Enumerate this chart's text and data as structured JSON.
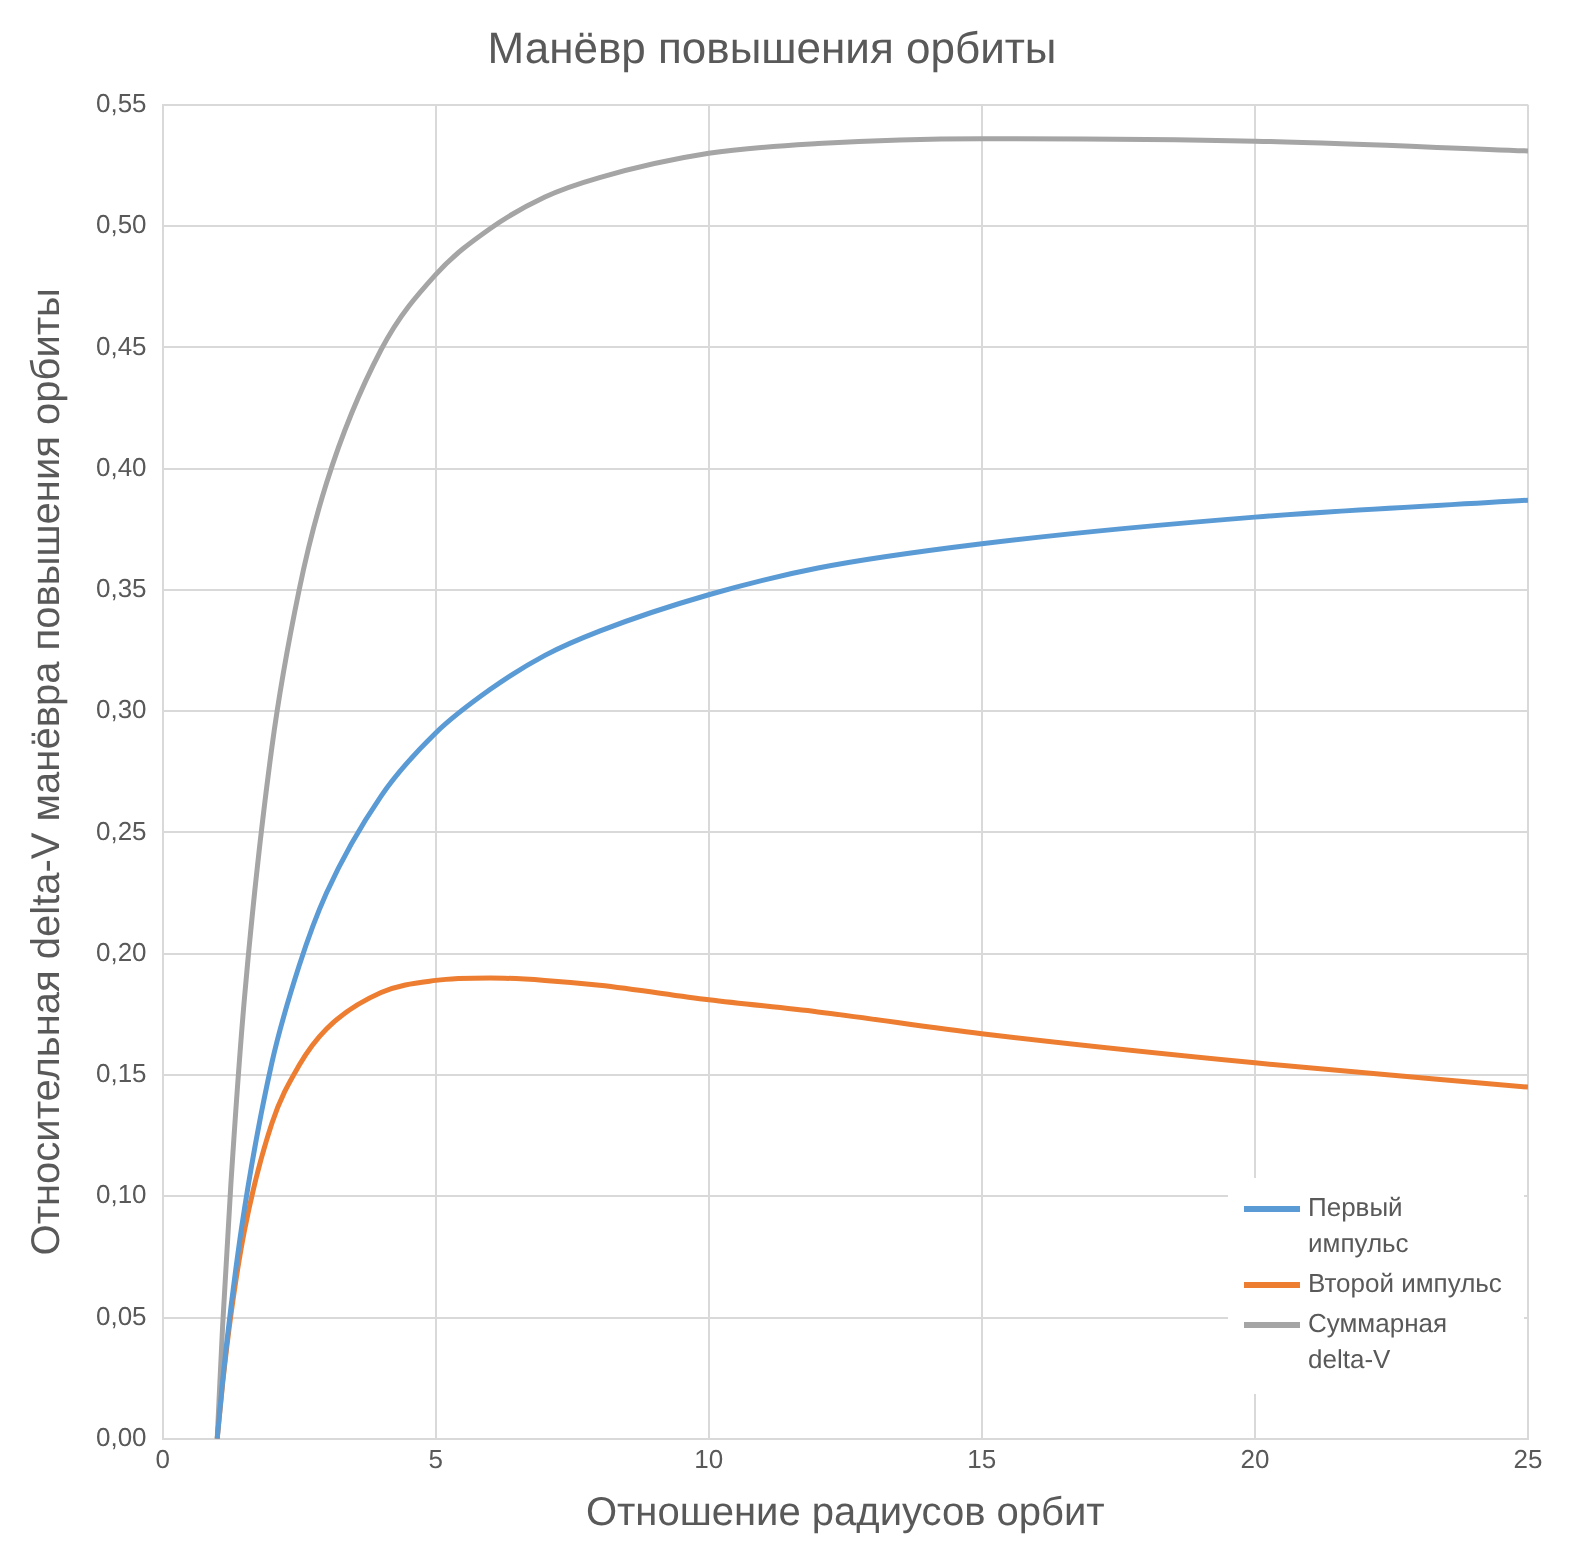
{
  "chart_data": {
    "type": "line",
    "title": "Манёвр повышения орбиты",
    "xlabel": "Отношение радиусов орбит",
    "ylabel": "Относительная delta-V манёвра повышения орбиты",
    "x": [
      1,
      1.1,
      1.25,
      1.5,
      2,
      2.5,
      3,
      4,
      5,
      6,
      7,
      8,
      10,
      12,
      15,
      20,
      25
    ],
    "series": [
      {
        "name": "Первый импульс",
        "color": "#5b9bd5",
        "values": [
          0,
          0.024,
          0.054,
          0.095,
          0.155,
          0.195,
          0.225,
          0.265,
          0.291,
          0.309,
          0.323,
          0.333,
          0.348,
          0.359,
          0.369,
          0.38,
          0.387
        ]
      },
      {
        "name": "Второй импульс",
        "color": "#ed7d31",
        "values": [
          0,
          0.023,
          0.051,
          0.086,
          0.13,
          0.154,
          0.169,
          0.184,
          0.189,
          0.19,
          0.189,
          0.187,
          0.181,
          0.176,
          0.167,
          0.155,
          0.145
        ]
      },
      {
        "name": "Суммарная delta-V",
        "color": "#a5a5a5",
        "values": [
          0,
          0.047,
          0.105,
          0.182,
          0.285,
          0.35,
          0.394,
          0.449,
          0.48,
          0.499,
          0.512,
          0.52,
          0.53,
          0.534,
          0.536,
          0.535,
          0.531
        ]
      }
    ],
    "xlim": [
      0,
      25
    ],
    "xticks": [
      0,
      5,
      10,
      15,
      20,
      25
    ],
    "ylim": [
      0,
      0.55
    ],
    "yticks": [
      {
        "value": 0,
        "label": "0,00"
      },
      {
        "value": 0.05,
        "label": "0,05"
      },
      {
        "value": 0.1,
        "label": "0,10"
      },
      {
        "value": 0.15,
        "label": "0,15"
      },
      {
        "value": 0.2,
        "label": "0,20"
      },
      {
        "value": 0.25,
        "label": "0,25"
      },
      {
        "value": 0.3,
        "label": "0,30"
      },
      {
        "value": 0.35,
        "label": "0,35"
      },
      {
        "value": 0.4,
        "label": "0,40"
      },
      {
        "value": 0.45,
        "label": "0,45"
      },
      {
        "value": 0.5,
        "label": "0,50"
      },
      {
        "value": 0.55,
        "label": "0,55"
      }
    ],
    "grid": true,
    "legend": "bottom right",
    "marker": "none",
    "line_style": "solid"
  }
}
